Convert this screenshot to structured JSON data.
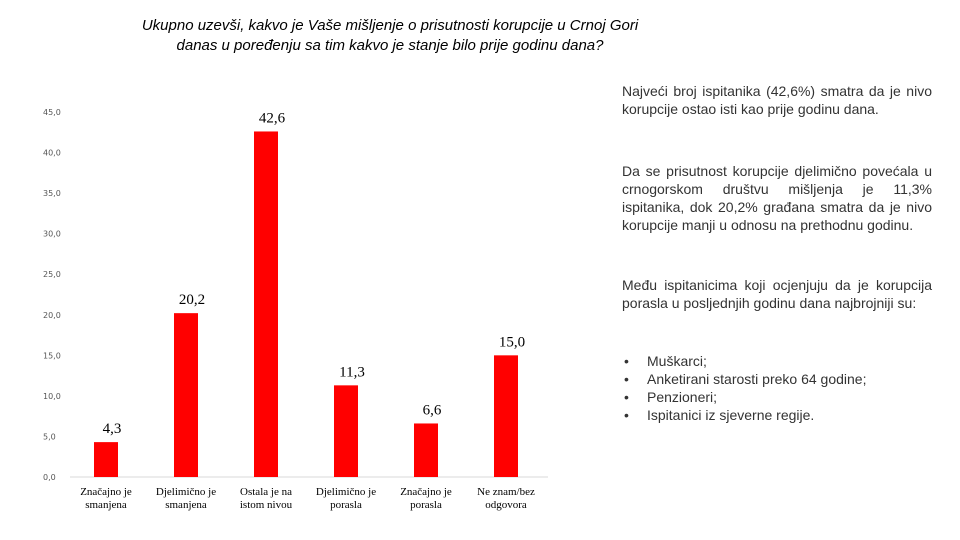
{
  "title": "Ukupno uzevši, kakvo je Vaše mišljenje o prisutnosti korupcije u Crnoj Gori danas u poređenju sa tim kakvo je stanje bilo prije godinu dana?",
  "colors": {
    "bar": "#ff0000",
    "baseline": "#d9d9d9"
  },
  "chart_data": {
    "type": "bar",
    "title": "Ukupno uzevši, kakvo je Vaše mišljenje o prisutnosti korupcije u Crnoj Gori danas u poređenju sa tim kakvo je stanje bilo prije godinu dana?",
    "categories": [
      [
        "Značajno je",
        "smanjena"
      ],
      [
        "Djelimično je",
        "smanjena"
      ],
      [
        "Ostala je na",
        "istom nivou"
      ],
      [
        "Djelimično je",
        "porasla"
      ],
      [
        "Značajno je",
        "porasla"
      ],
      [
        "Ne znam/bez",
        "odgovora"
      ]
    ],
    "values": [
      4.3,
      20.2,
      42.6,
      11.3,
      6.6,
      15.0
    ],
    "value_labels": [
      "4,3",
      "20,2",
      "42,6",
      "11,3",
      "6,6",
      "15,0"
    ],
    "yticks": [
      0,
      5,
      10,
      15,
      20,
      25,
      30,
      35,
      40,
      45
    ],
    "ytick_labels": [
      "0,0",
      "5,0",
      "10,0",
      "15,0",
      "20,0",
      "25,0",
      "30,0",
      "35,0",
      "40,0",
      "45,0"
    ],
    "ylim": [
      0,
      45
    ],
    "xlabel": "",
    "ylabel": "",
    "grid": false,
    "legend": "none"
  },
  "commentary": {
    "p1": "Najveći broj ispitanika (42,6%) smatra da je nivo korupcije ostao isti kao prije godinu dana.",
    "p2": "Da se prisutnost korupcije djelimično povećala u crnogorskom društvu mišljenja je 11,3% ispitanika, dok 20,2% građana smatra da je nivo korupcije manji u odnosu na prethodnu godinu.",
    "p3": "Među ispitanicima koji ocjenjuju da je korupcija porasla u posljednjih godinu dana najbrojniji su:",
    "bullet_char": "•",
    "bullets": [
      "Muškarci;",
      "Anketirani starosti preko 64 godine;",
      "Penzioneri;",
      "Ispitanici iz sjeverne regije."
    ]
  }
}
